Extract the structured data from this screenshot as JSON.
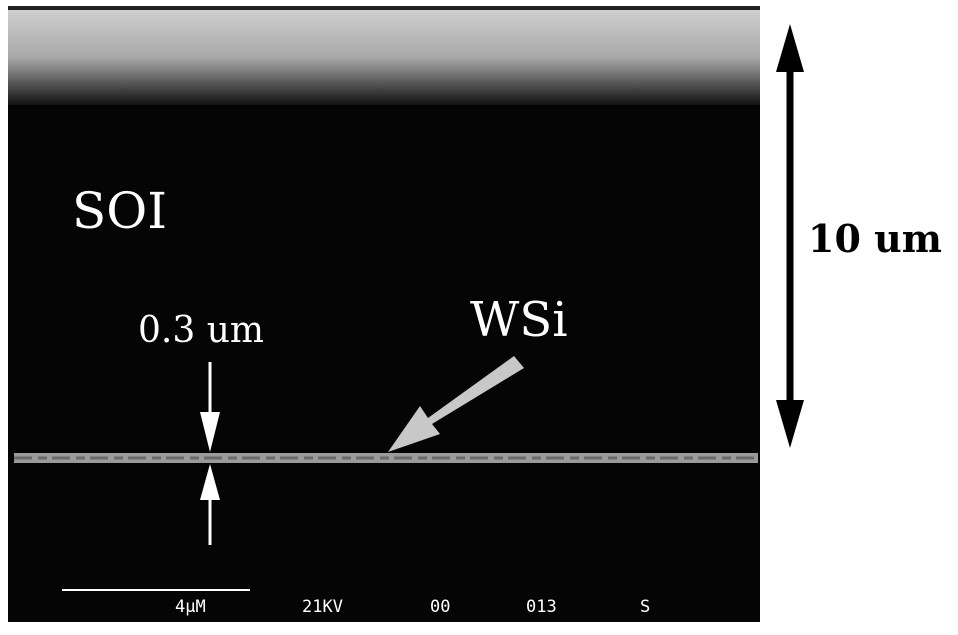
{
  "annotations": {
    "material_top": "SOI",
    "layer_thickness": "0.3 um",
    "layer_name": "WSi",
    "height_scale": "10 um"
  },
  "sem_info": {
    "scale_bar": "4µM",
    "voltage": "21KV",
    "field_1": "00",
    "field_2": "013",
    "field_3": "S"
  }
}
